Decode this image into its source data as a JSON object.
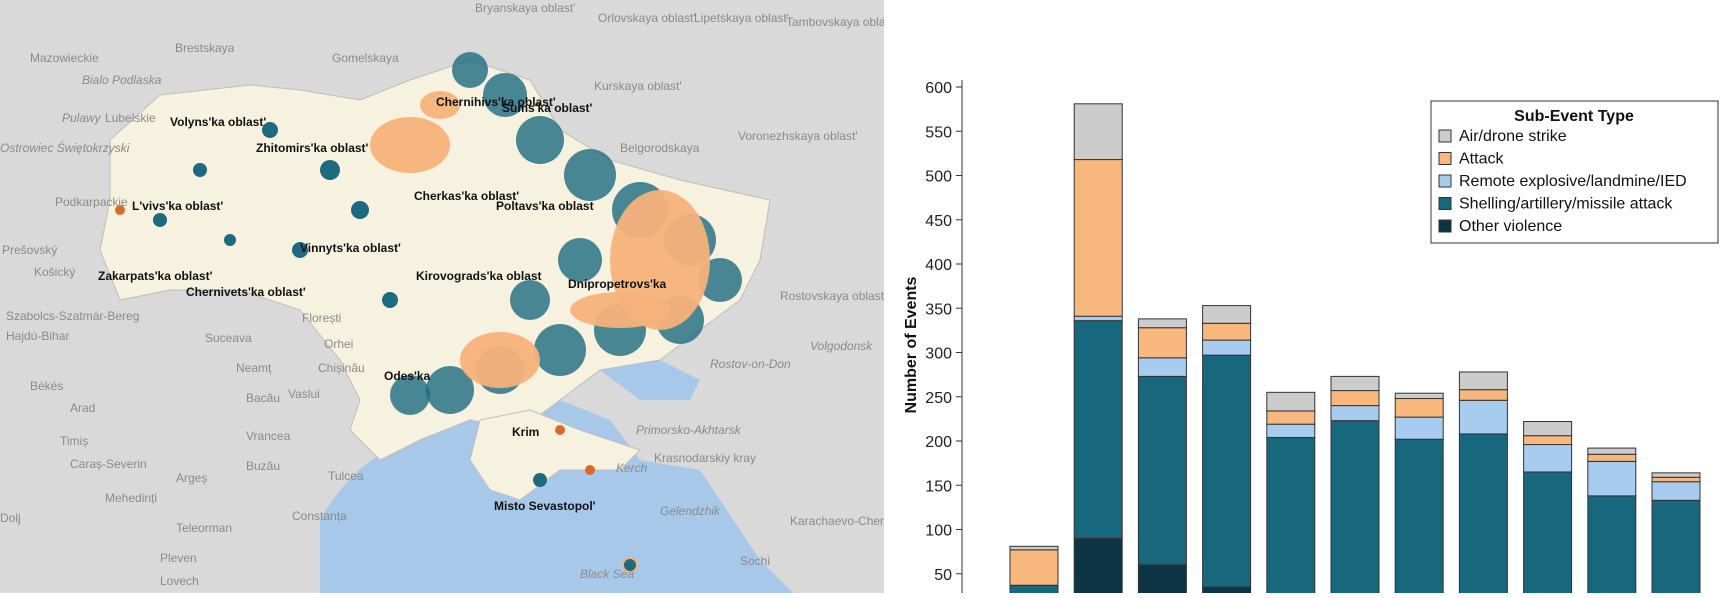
{
  "map": {
    "country_labels": [
      {
        "text": "Mazowieckie"
      },
      {
        "text": "Bialo Podlaska"
      },
      {
        "text": "Pulawy"
      },
      {
        "text": "Lubelskie"
      },
      {
        "text": "Ostrowiec Świętokrzyski"
      },
      {
        "text": "Podkarpackie"
      },
      {
        "text": "Prešovský"
      },
      {
        "text": "Košický"
      },
      {
        "text": "Szabolcs-Szatmár-Bereg"
      },
      {
        "text": "Hajdú-Bihar"
      },
      {
        "text": "Békés"
      },
      {
        "text": "Arad"
      },
      {
        "text": "Timiș"
      },
      {
        "text": "Caraș-Severin"
      },
      {
        "text": "Mehedinți"
      },
      {
        "text": "Dolj"
      },
      {
        "text": "Pleven"
      },
      {
        "text": "Lovech"
      },
      {
        "text": "Brestskaya"
      },
      {
        "text": "Gomelskaya"
      },
      {
        "text": "Bryanskaya oblast'"
      },
      {
        "text": "Orlovskaya oblast'"
      },
      {
        "text": "Lipetskaya oblast'"
      },
      {
        "text": "Tambovskaya oblast'"
      },
      {
        "text": "Kurskaya oblast'"
      },
      {
        "text": "Belgorodskaya"
      },
      {
        "text": "Voronezhskaya oblast'"
      },
      {
        "text": "Rostovskaya oblast'"
      },
      {
        "text": "Volgodonsk"
      },
      {
        "text": "Rostov-on-Don"
      },
      {
        "text": "Krasnodarskiy kray"
      },
      {
        "text": "Karachaevo-Cherkesskaya Respublika"
      },
      {
        "text": "Suceava"
      },
      {
        "text": "Neamț"
      },
      {
        "text": "Bacău"
      },
      {
        "text": "Vaslui"
      },
      {
        "text": "Vrancea"
      },
      {
        "text": "Buzău"
      },
      {
        "text": "Tulcea"
      },
      {
        "text": "Constanța"
      },
      {
        "text": "Teleorman"
      },
      {
        "text": "Argeș"
      },
      {
        "text": "Chișinău"
      },
      {
        "text": "Orhei"
      },
      {
        "text": "Florești"
      },
      {
        "text": "Sochi"
      },
      {
        "text": "Gelendzhik"
      },
      {
        "text": "Black Sea"
      },
      {
        "text": "Primorsko-Akhtarsk"
      },
      {
        "text": "Kerch"
      }
    ],
    "oblast_labels": [
      {
        "text": "Volyns'ka oblast'"
      },
      {
        "text": "Zhitomirs'ka oblast'"
      },
      {
        "text": "L'vivs'ka oblast'"
      },
      {
        "text": "Vinnyts'ka oblast'"
      },
      {
        "text": "Cherkas'ka oblast'"
      },
      {
        "text": "Kirovograds'ka oblast"
      },
      {
        "text": "Zakarpats'ka oblast'"
      },
      {
        "text": "Chernivets'ka oblast'"
      },
      {
        "text": "Odes'ka"
      },
      {
        "text": "Krim"
      },
      {
        "text": "Misto Sevastopol'"
      },
      {
        "text": "Dnipropetrovs'ka"
      },
      {
        "text": "Poltavs'ka oblast"
      },
      {
        "text": "Sums'ka oblast'"
      },
      {
        "text": "Chernihivs'ka oblast'"
      }
    ],
    "colors": {
      "land": "#f6f2df",
      "neighbors": "#d9d9d9",
      "sea": "#a8c8ea",
      "teal": "#1e6a80",
      "orange": "#f7b27a",
      "red": "#d96a2c"
    }
  },
  "chart_data": {
    "type": "bar",
    "stacked": true,
    "categories": [
      "",
      "",
      "",
      "",
      "",
      "",
      "",
      "",
      "",
      "",
      ""
    ],
    "ylabel": "Number of Events",
    "ylim": [
      0,
      600
    ],
    "yticks": [
      50,
      100,
      150,
      200,
      250,
      300,
      350,
      400,
      450,
      500,
      550,
      600
    ],
    "legend": {
      "title": "Sub-Event Type",
      "placement": "top-right"
    },
    "series": [
      {
        "name": "Other violence",
        "color": "#0d3545",
        "values": [
          0,
          90,
          60,
          35,
          0,
          0,
          0,
          0,
          0,
          0,
          0
        ]
      },
      {
        "name": "Shelling/artillery/missile attack",
        "color": "#17677e",
        "values": [
          37,
          246,
          213,
          262,
          204,
          223,
          202,
          208,
          165,
          138,
          133
        ]
      },
      {
        "name": "Remote explosive/landmine/IED",
        "color": "#a8ccf0",
        "values": [
          0,
          5,
          21,
          17,
          15,
          17,
          25,
          38,
          31,
          39,
          21
        ]
      },
      {
        "name": "Attack",
        "color": "#f7b77d",
        "values": [
          40,
          177,
          34,
          19,
          15,
          17,
          21,
          12,
          10,
          8,
          5
        ]
      },
      {
        "name": "Air/drone strike",
        "color": "#cccccc",
        "values": [
          4,
          63,
          10,
          20,
          21,
          16,
          6,
          20,
          16,
          7,
          5
        ]
      }
    ]
  }
}
